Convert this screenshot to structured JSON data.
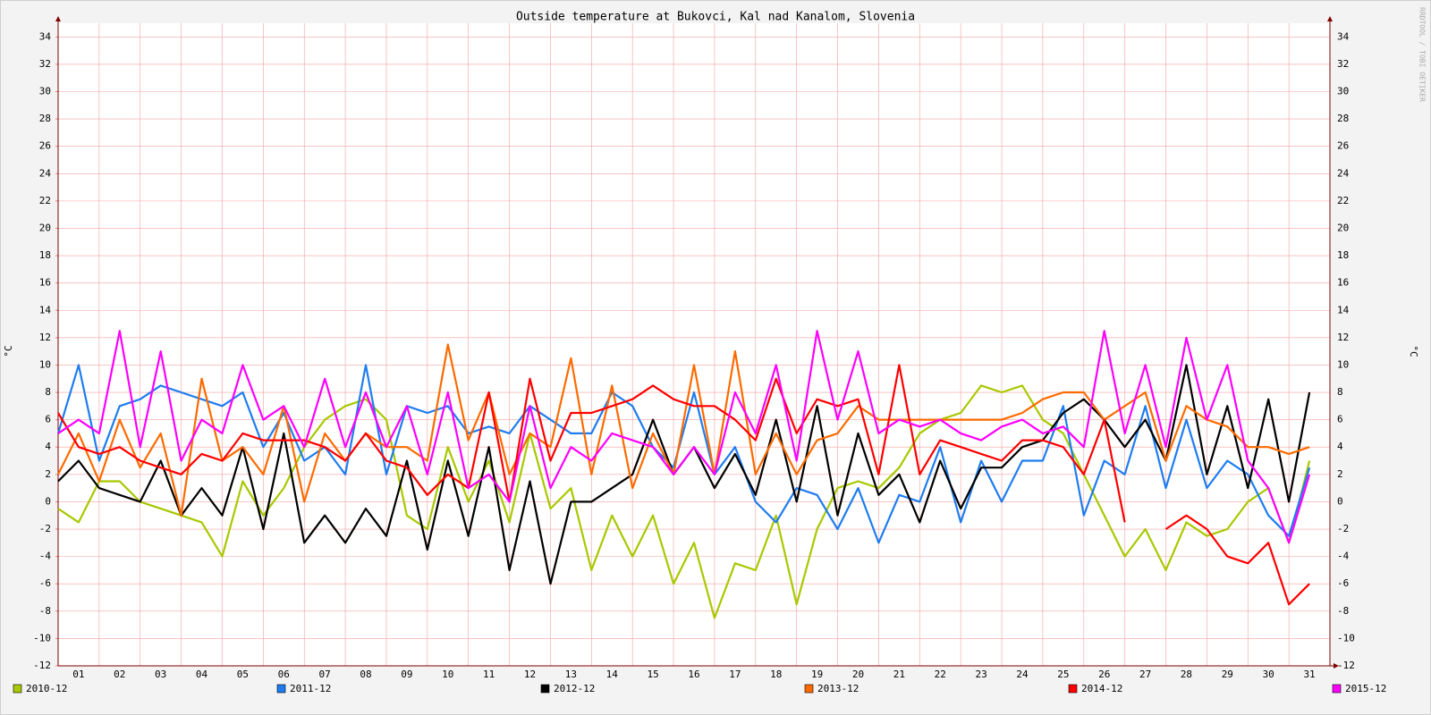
{
  "chart_data": {
    "type": "line",
    "title": "Outside temperature at Bukovci, Kal nad Kanalom, Slovenia",
    "y_label": "°C",
    "watermark": "RRDTOOL / TOBI OETIKER",
    "x": [
      1,
      1.5,
      2,
      2.5,
      3,
      3.5,
      4,
      4.5,
      5,
      5.5,
      6,
      6.5,
      7,
      7.5,
      8,
      8.5,
      9,
      9.5,
      10,
      10.5,
      11,
      11.5,
      12,
      12.5,
      13,
      13.5,
      14,
      14.5,
      15,
      15.5,
      16,
      16.5,
      17,
      17.5,
      18,
      18.5,
      19,
      19.5,
      20,
      20.5,
      21,
      21.5,
      22,
      22.5,
      23,
      23.5,
      24,
      24.5,
      25,
      25.5,
      26,
      26.5,
      27,
      27.5,
      28,
      28.5,
      29,
      29.5,
      30,
      30.5,
      31,
      31.5
    ],
    "xlim": [
      1,
      32
    ],
    "xticks": [
      {
        "value": 1.5,
        "label": "01"
      },
      {
        "value": 2.5,
        "label": "02"
      },
      {
        "value": 3.5,
        "label": "03"
      },
      {
        "value": 4.5,
        "label": "04"
      },
      {
        "value": 5.5,
        "label": "05"
      },
      {
        "value": 6.5,
        "label": "06"
      },
      {
        "value": 7.5,
        "label": "07"
      },
      {
        "value": 8.5,
        "label": "08"
      },
      {
        "value": 9.5,
        "label": "09"
      },
      {
        "value": 10.5,
        "label": "10"
      },
      {
        "value": 11.5,
        "label": "11"
      },
      {
        "value": 12.5,
        "label": "12"
      },
      {
        "value": 13.5,
        "label": "13"
      },
      {
        "value": 14.5,
        "label": "14"
      },
      {
        "value": 15.5,
        "label": "15"
      },
      {
        "value": 16.5,
        "label": "16"
      },
      {
        "value": 17.5,
        "label": "17"
      },
      {
        "value": 18.5,
        "label": "18"
      },
      {
        "value": 19.5,
        "label": "19"
      },
      {
        "value": 20.5,
        "label": "20"
      },
      {
        "value": 21.5,
        "label": "21"
      },
      {
        "value": 22.5,
        "label": "22"
      },
      {
        "value": 23.5,
        "label": "23"
      },
      {
        "value": 24.5,
        "label": "24"
      },
      {
        "value": 25.5,
        "label": "25"
      },
      {
        "value": 26.5,
        "label": "26"
      },
      {
        "value": 27.5,
        "label": "27"
      },
      {
        "value": 28.5,
        "label": "28"
      },
      {
        "value": 29.5,
        "label": "29"
      },
      {
        "value": 30.5,
        "label": "30"
      },
      {
        "value": 31.5,
        "label": "31"
      }
    ],
    "ylim": [
      -12,
      35
    ],
    "yticks": [
      -12,
      -10,
      -8,
      -6,
      -4,
      -2,
      0,
      2,
      4,
      6,
      8,
      10,
      12,
      14,
      16,
      18,
      20,
      22,
      24,
      26,
      28,
      30,
      32,
      34
    ],
    "grid": true,
    "series": [
      {
        "name": "2010-12",
        "color": "#a8c800",
        "values": [
          -0.5,
          -1.5,
          1.5,
          1.5,
          0,
          -0.5,
          -1,
          -1.5,
          -4,
          1.5,
          -1,
          1,
          4,
          6,
          7,
          7.5,
          6,
          -1,
          -2,
          4,
          0,
          3,
          -1.5,
          5,
          -0.5,
          1,
          -5,
          -1,
          -4,
          -1,
          -6,
          -3,
          -8.5,
          -4.5,
          -5,
          -1,
          -7.5,
          -2,
          1,
          1.5,
          1,
          2.5,
          5,
          6,
          6.5,
          8.5,
          8,
          8.5,
          6,
          5,
          2,
          -1,
          -4,
          -2,
          -5,
          -1.5,
          -2.5,
          -2,
          0,
          1,
          -3,
          3
        ]
      },
      {
        "name": "2011-12",
        "color": "#1e7cf0",
        "values": [
          5,
          10,
          3,
          7,
          7.5,
          8.5,
          8,
          7.5,
          7,
          8,
          4,
          6.5,
          3,
          4,
          2,
          10,
          2,
          7,
          6.5,
          7,
          5,
          5.5,
          5,
          7,
          6,
          5,
          5,
          8,
          7,
          4,
          2.5,
          8,
          2,
          4,
          0,
          -1.5,
          1,
          0.5,
          -2,
          1,
          -3,
          0.5,
          0,
          4,
          -1.5,
          3,
          0,
          3,
          3,
          7,
          -1,
          3,
          2,
          7,
          1,
          6,
          1,
          3,
          2,
          -1,
          -2.5,
          2.5
        ]
      },
      {
        "name": "2012-12",
        "color": "#000000",
        "values": [
          1.5,
          3,
          1,
          0.5,
          0,
          3,
          -1,
          1,
          -1,
          4,
          -2,
          5,
          -3,
          -1,
          -3,
          -0.5,
          -2.5,
          3,
          -3.5,
          3,
          -2.5,
          4,
          -5,
          1.5,
          -6,
          0,
          0,
          1,
          2,
          6,
          2,
          4,
          1,
          3.5,
          0.5,
          6,
          0,
          7,
          -1,
          5,
          0.5,
          2,
          -1.5,
          3,
          -0.5,
          2.5,
          2.5,
          4,
          4.5,
          6.5,
          7.5,
          6,
          4,
          6,
          3,
          10,
          2,
          7,
          1,
          7.5,
          0,
          8
        ]
      },
      {
        "name": "2013-12",
        "color": "#ff6a00",
        "values": [
          2,
          5,
          1.5,
          6,
          2.5,
          5,
          -1,
          9,
          3,
          4,
          2,
          7,
          0,
          5,
          3,
          5,
          4,
          4,
          3,
          11.5,
          4.5,
          8,
          2,
          5,
          4,
          10.5,
          2,
          8.5,
          1,
          5,
          2,
          10,
          2,
          11,
          2,
          5,
          2,
          4.5,
          5,
          7,
          6,
          6,
          6,
          6,
          6,
          6,
          6,
          6.5,
          7.5,
          8,
          8,
          6,
          7,
          8,
          3,
          7,
          6,
          5.5,
          4,
          4,
          3.5,
          4
        ]
      },
      {
        "name": "2014-12",
        "color": "#ff0000",
        "values": [
          6.5,
          4,
          3.5,
          4,
          3,
          2.5,
          2,
          3.5,
          3,
          5,
          4.5,
          4.5,
          4.5,
          4,
          3,
          5,
          3,
          2.5,
          0.5,
          2,
          1,
          8,
          0,
          9,
          3,
          6.5,
          6.5,
          7,
          7.5,
          8.5,
          7.5,
          7,
          7,
          6,
          4.5,
          9,
          5,
          7.5,
          7,
          7.5,
          2,
          10,
          2,
          4.5,
          4,
          3.5,
          3,
          4.5,
          4.5,
          4,
          2,
          6,
          -1.5,
          null,
          -2,
          -1,
          -2,
          -4,
          -4.5,
          -3,
          -7.5,
          -6
        ]
      },
      {
        "name": "2015-12",
        "color": "#ff00ff",
        "values": [
          5,
          6,
          5,
          12.5,
          4,
          11,
          3,
          6,
          5,
          10,
          6,
          7,
          4,
          9,
          4,
          8,
          4,
          7,
          2,
          8,
          1,
          2,
          0,
          7,
          1,
          4,
          3,
          5,
          4.5,
          4,
          2,
          4,
          2,
          8,
          5,
          10,
          3,
          12.5,
          6,
          11,
          5,
          6,
          5.5,
          6,
          5,
          4.5,
          5.5,
          6,
          5,
          5.5,
          4,
          12.5,
          5,
          10,
          4,
          12,
          6,
          10,
          3,
          1,
          -3,
          2
        ]
      }
    ]
  }
}
